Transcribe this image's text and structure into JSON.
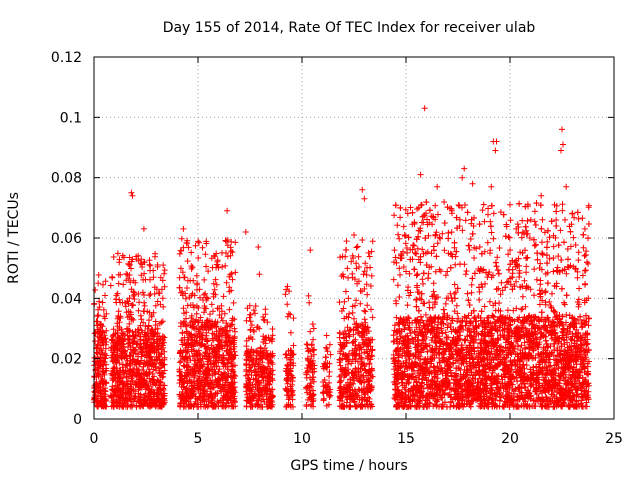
{
  "chart_data": {
    "type": "scatter",
    "title": "Day 155 of 2014, Rate Of TEC Index for receiver ulab",
    "xlabel": "GPS time / hours",
    "ylabel": "ROTI / TECUs",
    "xlim": [
      0,
      25
    ],
    "ylim": [
      0,
      0.12
    ],
    "x_ticks": [
      0,
      5,
      10,
      15,
      20,
      25
    ],
    "y_ticks": [
      0,
      0.02,
      0.04,
      0.06,
      0.08,
      0.1,
      0.12
    ],
    "x_tick_labels": [
      "0",
      "5",
      "10",
      "15",
      "20",
      "25"
    ],
    "y_tick_labels": [
      "0",
      "0.02",
      "0.04",
      "0.06",
      "0.08",
      "0.1",
      "0.12"
    ],
    "grid": true,
    "marker": "plus",
    "color": "#ff0000",
    "series": [
      {
        "clusters": [
          {
            "x_range": [
              0.0,
              0.6
            ],
            "n": 220,
            "y_median": 0.018,
            "y_max": 0.048
          },
          {
            "x_range": [
              0.8,
              3.4
            ],
            "n": 900,
            "y_median": 0.017,
            "y_max": 0.055
          },
          {
            "x_range": [
              4.1,
              6.8
            ],
            "n": 900,
            "y_median": 0.019,
            "y_max": 0.06
          },
          {
            "x_range": [
              7.3,
              8.6
            ],
            "n": 320,
            "y_median": 0.012,
            "y_max": 0.038
          },
          {
            "x_range": [
              9.2,
              9.6
            ],
            "n": 90,
            "y_median": 0.012,
            "y_max": 0.044
          },
          {
            "x_range": [
              10.2,
              10.6
            ],
            "n": 80,
            "y_median": 0.014,
            "y_max": 0.042
          },
          {
            "x_range": [
              11.0,
              11.4
            ],
            "n": 50,
            "y_median": 0.012,
            "y_max": 0.028
          },
          {
            "x_range": [
              11.8,
              13.4
            ],
            "n": 450,
            "y_median": 0.018,
            "y_max": 0.06
          },
          {
            "x_range": [
              14.4,
              23.8
            ],
            "n": 4200,
            "y_median": 0.02,
            "y_max": 0.072
          }
        ],
        "highlights": [
          {
            "x": 1.8,
            "y": 0.075
          },
          {
            "x": 1.85,
            "y": 0.074
          },
          {
            "x": 2.4,
            "y": 0.063
          },
          {
            "x": 4.3,
            "y": 0.063
          },
          {
            "x": 6.4,
            "y": 0.069
          },
          {
            "x": 7.3,
            "y": 0.062
          },
          {
            "x": 7.9,
            "y": 0.057
          },
          {
            "x": 7.95,
            "y": 0.048
          },
          {
            "x": 10.4,
            "y": 0.056
          },
          {
            "x": 12.9,
            "y": 0.076
          },
          {
            "x": 13.0,
            "y": 0.073
          },
          {
            "x": 12.5,
            "y": 0.061
          },
          {
            "x": 15.7,
            "y": 0.081
          },
          {
            "x": 15.9,
            "y": 0.103
          },
          {
            "x": 16.5,
            "y": 0.077
          },
          {
            "x": 17.2,
            "y": 0.069
          },
          {
            "x": 17.7,
            "y": 0.08
          },
          {
            "x": 17.8,
            "y": 0.083
          },
          {
            "x": 18.2,
            "y": 0.078
          },
          {
            "x": 19.2,
            "y": 0.092
          },
          {
            "x": 19.35,
            "y": 0.092
          },
          {
            "x": 19.3,
            "y": 0.089
          },
          {
            "x": 19.1,
            "y": 0.077
          },
          {
            "x": 20.0,
            "y": 0.071
          },
          {
            "x": 21.5,
            "y": 0.074
          },
          {
            "x": 22.5,
            "y": 0.096
          },
          {
            "x": 22.55,
            "y": 0.091
          },
          {
            "x": 22.45,
            "y": 0.089
          },
          {
            "x": 22.7,
            "y": 0.077
          },
          {
            "x": 23.0,
            "y": 0.068
          },
          {
            "x": 23.6,
            "y": 0.063
          },
          {
            "x": 21.0,
            "y": 0.066
          },
          {
            "x": 20.3,
            "y": 0.063
          }
        ]
      }
    ]
  }
}
